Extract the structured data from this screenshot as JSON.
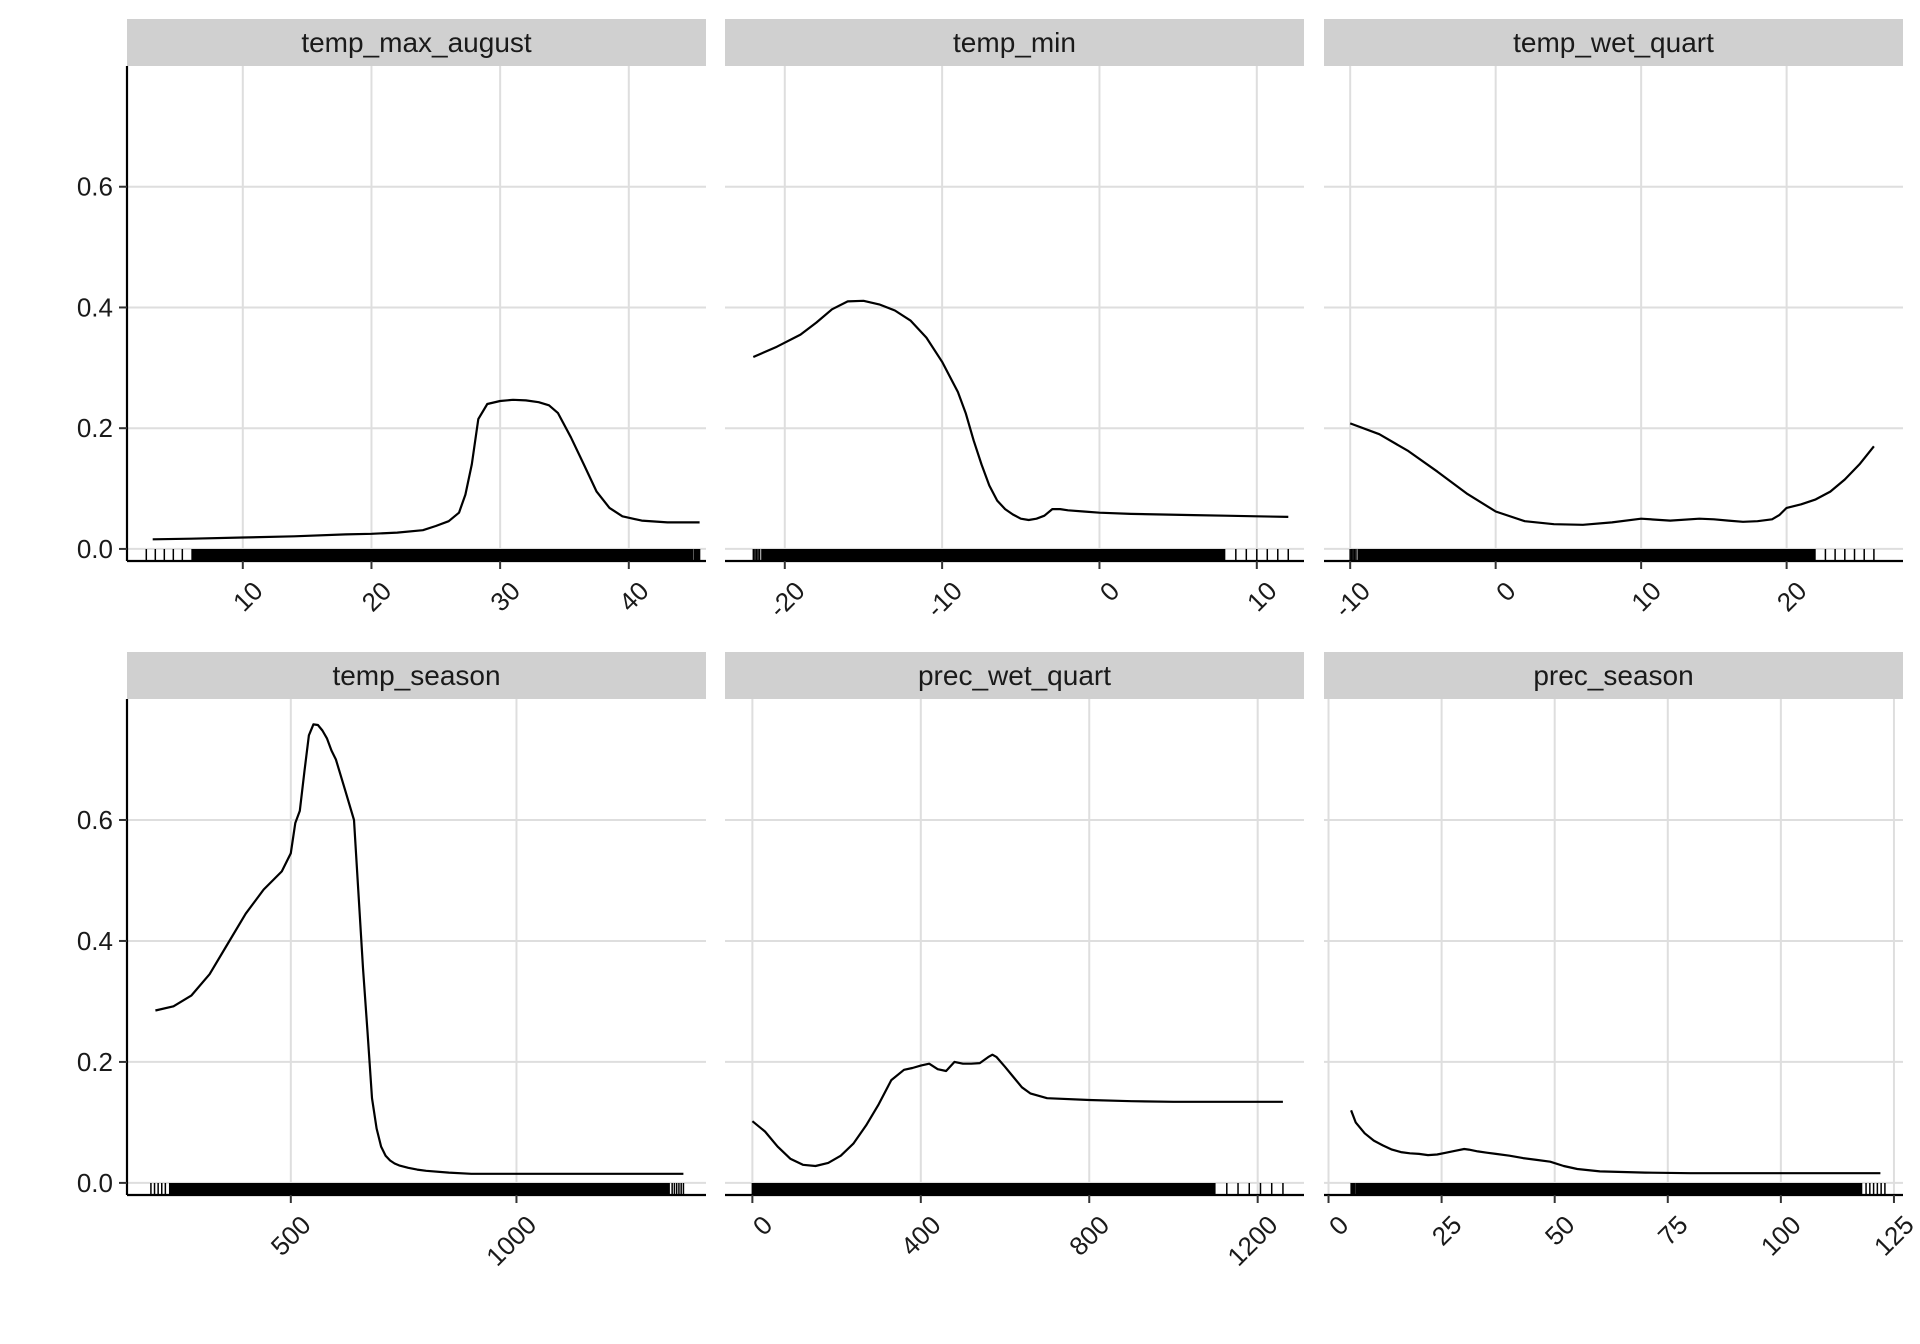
{
  "chart_data": [
    {
      "type": "line",
      "title": "temp_max_august",
      "xlabel": "",
      "ylabel": "",
      "xlim": [
        1,
        46
      ],
      "ylim": [
        -0.02,
        0.8
      ],
      "xticks": [
        10,
        20,
        30,
        40
      ],
      "yticks": [
        0.0,
        0.2,
        0.4,
        0.6
      ],
      "ytick_labels": [
        "0.0",
        "0.2",
        "0.4",
        "0.6"
      ],
      "grid": true,
      "series": [
        {
          "x": [
            3,
            6,
            10,
            14,
            18,
            20,
            22,
            24,
            25,
            26,
            26.8,
            27.3,
            27.8,
            28.3,
            29,
            30,
            31,
            32,
            33,
            33.8,
            34.5,
            35.5,
            36.5,
            37.5,
            38.5,
            39.5,
            41,
            43,
            45.5
          ],
          "y": [
            0.016,
            0.017,
            0.019,
            0.021,
            0.024,
            0.025,
            0.027,
            0.031,
            0.038,
            0.046,
            0.06,
            0.09,
            0.14,
            0.215,
            0.24,
            0.245,
            0.247,
            0.246,
            0.243,
            0.238,
            0.225,
            0.185,
            0.14,
            0.095,
            0.068,
            0.054,
            0.047,
            0.044,
            0.044
          ]
        }
      ],
      "rug": {
        "from": 2.5,
        "to": 45.5,
        "dense_from": 6,
        "dense_to": 45
      }
    },
    {
      "type": "line",
      "title": "temp_min",
      "xlabel": "",
      "ylabel": "",
      "xlim": [
        -23.8,
        13
      ],
      "ylim": [
        -0.02,
        0.8
      ],
      "xticks": [
        -20,
        -10,
        0,
        10
      ],
      "grid": true,
      "series": [
        {
          "x": [
            -22,
            -20.5,
            -19,
            -18,
            -17,
            -16,
            -15,
            -14,
            -13,
            -12,
            -11,
            -10,
            -9,
            -8.5,
            -8,
            -7.5,
            -7,
            -6.5,
            -6,
            -5.5,
            -5,
            -4.5,
            -4,
            -3.5,
            -3,
            -2.5,
            -2,
            -1,
            0,
            2,
            4,
            6,
            8,
            10,
            12
          ],
          "y": [
            0.318,
            0.335,
            0.355,
            0.375,
            0.397,
            0.41,
            0.411,
            0.405,
            0.395,
            0.378,
            0.35,
            0.31,
            0.26,
            0.225,
            0.18,
            0.14,
            0.105,
            0.08,
            0.066,
            0.057,
            0.05,
            0.048,
            0.05,
            0.055,
            0.066,
            0.066,
            0.064,
            0.062,
            0.06,
            0.058,
            0.057,
            0.056,
            0.055,
            0.054,
            0.053
          ]
        }
      ],
      "rug": {
        "from": -22,
        "to": 12,
        "dense_from": -21.5,
        "dense_to": 8
      }
    },
    {
      "type": "line",
      "title": "temp_wet_quart",
      "xlabel": "",
      "ylabel": "",
      "xlim": [
        -11.8,
        28
      ],
      "ylim": [
        -0.02,
        0.8
      ],
      "xticks": [
        -10,
        0,
        10,
        20
      ],
      "grid": true,
      "series": [
        {
          "x": [
            -10,
            -8,
            -6,
            -4,
            -2,
            0,
            2,
            4,
            6,
            8,
            10,
            12,
            14,
            15,
            16,
            17,
            18,
            19,
            19.5,
            20,
            21,
            22,
            23,
            24,
            25,
            26
          ],
          "y": [
            0.208,
            0.19,
            0.162,
            0.128,
            0.092,
            0.062,
            0.046,
            0.041,
            0.04,
            0.044,
            0.05,
            0.047,
            0.05,
            0.049,
            0.047,
            0.045,
            0.046,
            0.049,
            0.056,
            0.068,
            0.074,
            0.082,
            0.095,
            0.115,
            0.14,
            0.17
          ]
        }
      ],
      "rug": {
        "from": -10,
        "to": 26,
        "dense_from": -9.5,
        "dense_to": 22
      }
    },
    {
      "type": "line",
      "title": "temp_season",
      "xlabel": "",
      "ylabel": "",
      "xlim": [
        137,
        1420
      ],
      "ylim": [
        -0.02,
        0.8
      ],
      "xticks": [
        500,
        1000
      ],
      "grid": true,
      "series": [
        {
          "x": [
            200,
            240,
            280,
            320,
            360,
            400,
            440,
            480,
            500,
            510,
            520,
            530,
            540,
            550,
            560,
            570,
            580,
            590,
            600,
            620,
            640,
            660,
            670,
            680,
            690,
            700,
            710,
            720,
            730,
            740,
            760,
            780,
            800,
            850,
            900,
            1000,
            1100,
            1200,
            1300,
            1370
          ],
          "y": [
            0.285,
            0.292,
            0.31,
            0.345,
            0.395,
            0.445,
            0.485,
            0.515,
            0.545,
            0.595,
            0.615,
            0.68,
            0.74,
            0.758,
            0.757,
            0.748,
            0.735,
            0.715,
            0.7,
            0.65,
            0.6,
            0.355,
            0.25,
            0.14,
            0.09,
            0.06,
            0.045,
            0.037,
            0.032,
            0.029,
            0.025,
            0.022,
            0.02,
            0.017,
            0.015,
            0.015,
            0.015,
            0.015,
            0.015,
            0.015
          ]
        }
      ],
      "rug": {
        "from": 190,
        "to": 1370,
        "dense_from": 230,
        "dense_to": 1340
      }
    },
    {
      "type": "line",
      "title": "prec_wet_quart",
      "xlabel": "",
      "ylabel": "",
      "xlim": [
        -65,
        1310
      ],
      "ylim": [
        -0.02,
        0.8
      ],
      "xticks": [
        0,
        400,
        800,
        1200
      ],
      "grid": true,
      "series": [
        {
          "x": [
            0,
            30,
            60,
            90,
            120,
            150,
            180,
            210,
            240,
            270,
            300,
            330,
            360,
            380,
            400,
            420,
            440,
            460,
            480,
            500,
            520,
            540,
            560,
            570,
            580,
            600,
            620,
            640,
            660,
            700,
            800,
            900,
            1000,
            1100,
            1200,
            1260
          ],
          "y": [
            0.102,
            0.085,
            0.06,
            0.04,
            0.03,
            0.028,
            0.033,
            0.045,
            0.065,
            0.095,
            0.13,
            0.17,
            0.187,
            0.19,
            0.194,
            0.197,
            0.188,
            0.185,
            0.2,
            0.197,
            0.197,
            0.198,
            0.208,
            0.212,
            0.208,
            0.192,
            0.175,
            0.158,
            0.148,
            0.14,
            0.137,
            0.135,
            0.134,
            0.134,
            0.134,
            0.134
          ]
        }
      ],
      "rug": {
        "from": 0,
        "to": 1260,
        "dense_from": 5,
        "dense_to": 1100
      }
    },
    {
      "type": "line",
      "title": "prec_season",
      "xlabel": "",
      "ylabel": "",
      "xlim": [
        -1,
        127
      ],
      "ylim": [
        -0.02,
        0.8
      ],
      "xticks": [
        0,
        25,
        50,
        75,
        100,
        125
      ],
      "grid": true,
      "series": [
        {
          "x": [
            5,
            6,
            8,
            10,
            12,
            14,
            16,
            18,
            20,
            22,
            24,
            26,
            28,
            30,
            31,
            33,
            35,
            37,
            40,
            43,
            46,
            49,
            52,
            55,
            60,
            70,
            80,
            90,
            100,
            110,
            120,
            122
          ],
          "y": [
            0.12,
            0.1,
            0.082,
            0.07,
            0.062,
            0.055,
            0.051,
            0.049,
            0.048,
            0.046,
            0.047,
            0.05,
            0.053,
            0.056,
            0.055,
            0.052,
            0.05,
            0.048,
            0.045,
            0.041,
            0.038,
            0.035,
            0.028,
            0.023,
            0.019,
            0.017,
            0.016,
            0.016,
            0.016,
            0.016,
            0.016,
            0.016
          ]
        }
      ],
      "rug": {
        "from": 5,
        "to": 123,
        "dense_from": 6,
        "dense_to": 118
      }
    }
  ]
}
